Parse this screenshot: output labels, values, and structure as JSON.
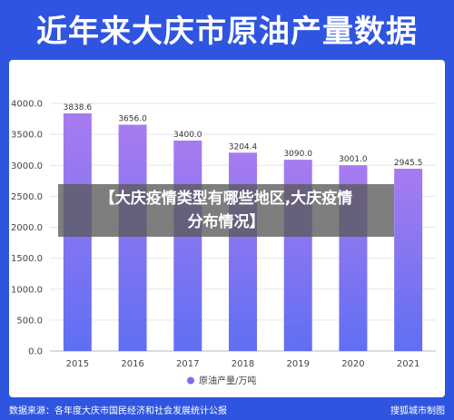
{
  "header": {
    "title": "近年来大庆市原油产量数据"
  },
  "overlay": {
    "line1": "【大庆疫情类型有哪些地区,大庆疫情",
    "line2": "分布情况】"
  },
  "footer": {
    "source": "数据来源：各年度大庆市国民经济和社会发展统计公报",
    "brand": "搜狐城市制图"
  },
  "colors": {
    "background": "#2f55e0",
    "bar_top": "#a77bf0",
    "bar_bottom": "#5f6ff2",
    "legend_dot": "#7b6ff0"
  },
  "chart_data": {
    "type": "bar",
    "categories": [
      "2015",
      "2016",
      "2017",
      "2018",
      "2019",
      "2020",
      "2021"
    ],
    "series": [
      {
        "name": "原油产量/万吨",
        "values": [
          3838.6,
          3656.0,
          3400.0,
          3204.4,
          3090.0,
          3001.0,
          2945.5
        ]
      }
    ],
    "data_labels": [
      "3838.6",
      "3656.0",
      "3400.0",
      "3204.4",
      "3090.0",
      "3001.0",
      "2945.5"
    ],
    "yticks": [
      "0.0",
      "500.0",
      "1000.0",
      "1500.0",
      "2000.0",
      "2500.0",
      "3000.0",
      "3500.0",
      "4000.0"
    ],
    "ylim": [
      0,
      4000
    ],
    "grid": true,
    "legend": "bottom-center"
  }
}
